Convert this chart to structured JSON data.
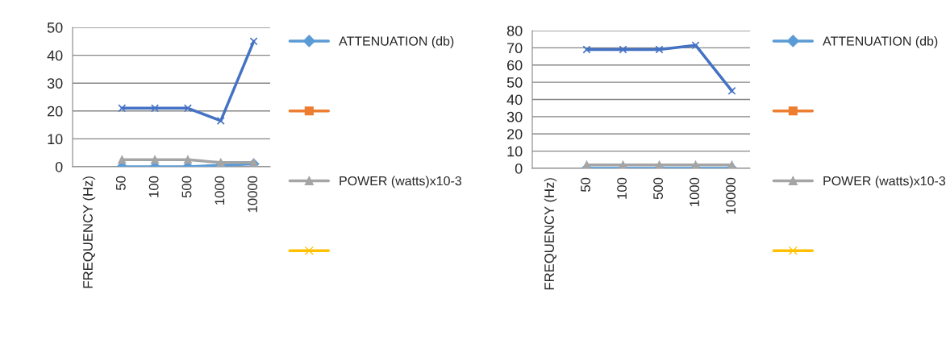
{
  "chart_data": [
    {
      "type": "line",
      "categories": [
        "FREQUENCY (Hz)",
        "50",
        "100",
        "500",
        "1000",
        "10000"
      ],
      "ylim": [
        0,
        50
      ],
      "yticks": [
        0,
        10,
        20,
        30,
        40,
        50
      ],
      "grid": "y",
      "legend": "right",
      "series": [
        {
          "name": "ATTENUATION (db)",
          "color": "#5b9bd5",
          "marker": "diamond",
          "values": [
            null,
            0,
            0,
            0,
            0.5,
            1
          ]
        },
        {
          "color": "#ed7d31",
          "marker": "square",
          "values": [
            null,
            null,
            null,
            null,
            null,
            null
          ]
        },
        {
          "name": "POWER (watts)x10-3",
          "color": "#a5a5a5",
          "marker": "triangle",
          "values": [
            null,
            2.5,
            2.5,
            2.5,
            1.5,
            1.5
          ]
        },
        {
          "color": "#ffc000",
          "marker": "cross",
          "values": [
            null,
            null,
            null,
            null,
            null,
            null
          ]
        },
        {
          "color": "#4472c4",
          "marker": "cross",
          "values": [
            null,
            21,
            21,
            21,
            16.5,
            45
          ]
        }
      ]
    },
    {
      "type": "line",
      "categories": [
        "FREQUENCY (Hz)",
        "50",
        "100",
        "500",
        "1000",
        "10000"
      ],
      "ylim": [
        0,
        80
      ],
      "yticks": [
        0,
        10,
        20,
        30,
        40,
        50,
        60,
        70,
        80
      ],
      "grid": "y",
      "legend": "right",
      "series": [
        {
          "name": "ATTENUATION (db)",
          "color": "#5b9bd5",
          "marker": "diamond",
          "values": [
            null,
            0,
            0,
            0,
            0,
            0
          ]
        },
        {
          "color": "#ed7d31",
          "marker": "square",
          "values": [
            null,
            null,
            null,
            null,
            null,
            null
          ]
        },
        {
          "name": "POWER (watts)x10-3",
          "color": "#a5a5a5",
          "marker": "triangle",
          "values": [
            null,
            2,
            2,
            2,
            2,
            2
          ]
        },
        {
          "color": "#ffc000",
          "marker": "cross",
          "values": [
            null,
            null,
            null,
            null,
            null,
            null
          ]
        },
        {
          "color": "#4472c4",
          "marker": "cross",
          "values": [
            null,
            69,
            69,
            69,
            71.5,
            45
          ]
        }
      ]
    }
  ]
}
